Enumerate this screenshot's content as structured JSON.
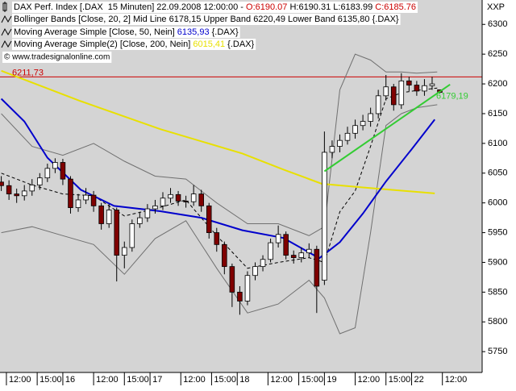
{
  "chart_data": {
    "type": "candlestick",
    "corner_label": "XXP",
    "source": "© www.tradesignalonline.com",
    "header": [
      [
        {
          "text": "DAX Perf. Index [.DAX  15 Minuten] 22.09.2008 12:00:00 - ",
          "color": "#000000"
        },
        {
          "text": "O:6190.07",
          "color": "#cc0000"
        },
        {
          "text": " H:6190.31 L:6183.99 ",
          "color": "#000000"
        },
        {
          "text": "C:6185.76",
          "color": "#cc0000"
        }
      ],
      [
        {
          "text": "Bollinger Bands [Close, 20, 2] Mid Line 6178,15 Upper Band 6220,49 Lower Band 6135,80 {.DAX}",
          "color": "#000000"
        }
      ],
      [
        {
          "text": "Moving Average Simple [Close, 50, Nein] ",
          "color": "#000000"
        },
        {
          "text": "6135,93",
          "color": "#0000cc"
        },
        {
          "text": " {.DAX}",
          "color": "#000000"
        }
      ],
      [
        {
          "text": "Moving Average Simple(2) [Close, 200, Nein] ",
          "color": "#000000"
        },
        {
          "text": "6015,41",
          "color": "#e8e000"
        },
        {
          "text": " {.DAX}",
          "color": "#000000"
        }
      ]
    ],
    "up_color": "#ffffff",
    "down_color": "#800000",
    "x": [
      -24,
      -21,
      -18,
      -15,
      -12,
      -9,
      -6,
      -3,
      0,
      3,
      6,
      9,
      12,
      15,
      18,
      21,
      24,
      27,
      30,
      33,
      36,
      39,
      42,
      45,
      48,
      51,
      54,
      57,
      60,
      63,
      66,
      69,
      72,
      75,
      78,
      81,
      84,
      87,
      90,
      93,
      96,
      99,
      102,
      105,
      108,
      111,
      114,
      117,
      120,
      123,
      126,
      129,
      132,
      135,
      138,
      141,
      144,
      147
    ],
    "open": [
      6035,
      6029,
      6015,
      6012,
      6020,
      6030,
      6042,
      6058,
      6068,
      6040,
      5992,
      6005,
      6013,
      5995,
      5965,
      5988,
      5912,
      5925,
      5965,
      5975,
      5990,
      5995,
      6008,
      6014,
      6003,
      6002,
      6015,
      5995,
      5950,
      5930,
      5893,
      5850,
      5835,
      5878,
      5893,
      5905,
      5933,
      5947,
      5912,
      5908,
      5916,
      5922,
      5870,
      6085,
      6095,
      6105,
      6117,
      6130,
      6137,
      6150,
      6180,
      6195,
      6165,
      6205,
      6198,
      6188,
      6197,
      6190.07
    ],
    "high": [
      6045,
      6038,
      6024,
      6030,
      6040,
      6050,
      6066,
      6075,
      6074,
      6045,
      6015,
      6025,
      6020,
      6000,
      5998,
      5992,
      5935,
      5972,
      5985,
      5998,
      6005,
      6018,
      6025,
      6020,
      6012,
      6030,
      6022,
      6000,
      5958,
      5935,
      5898,
      5860,
      5885,
      5900,
      5912,
      5940,
      5962,
      5952,
      5920,
      5925,
      5932,
      5928,
      6120,
      6105,
      6115,
      6128,
      6140,
      6148,
      6160,
      6190,
      6215,
      6200,
      6218,
      6212,
      6205,
      6208,
      6212,
      6190.31
    ],
    "low": [
      6020,
      6005,
      6000,
      6004,
      6012,
      6022,
      6035,
      6050,
      6030,
      5982,
      5985,
      5998,
      5985,
      5955,
      5958,
      5868,
      5890,
      5918,
      5958,
      5968,
      5982,
      5988,
      6000,
      5995,
      5992,
      5995,
      5985,
      5940,
      5918,
      5880,
      5825,
      5812,
      5828,
      5870,
      5885,
      5900,
      5925,
      5905,
      5898,
      5900,
      5908,
      5815,
      5862,
      6075,
      6085,
      6098,
      6108,
      6122,
      6128,
      6142,
      6172,
      6155,
      6158,
      6188,
      6180,
      6180,
      6190,
      6183.99
    ],
    "close": [
      6029,
      6015,
      6012,
      6020,
      6030,
      6042,
      6058,
      6068,
      6040,
      5992,
      6005,
      6013,
      5995,
      5965,
      5988,
      5912,
      5925,
      5965,
      5975,
      5990,
      5995,
      6008,
      6014,
      6003,
      6002,
      6015,
      5995,
      5950,
      5930,
      5893,
      5850,
      5835,
      5878,
      5893,
      5905,
      5933,
      5947,
      5912,
      5908,
      5916,
      5922,
      5860,
      6085,
      6095,
      6105,
      6117,
      6130,
      6137,
      6150,
      6180,
      6195,
      6165,
      6205,
      6198,
      6188,
      6197,
      6200,
      6185.76
    ],
    "lines": [
      {
        "color": "#707070",
        "width": 1,
        "dash": false,
        "x": [
          -24,
          -12,
          0,
          12,
          24,
          36,
          48,
          60,
          72,
          84,
          96,
          102,
          108,
          114,
          120,
          126,
          132,
          138,
          146
        ],
        "values": [
          6150,
          6095,
          6080,
          6100,
          6070,
          6045,
          6040,
          6000,
          5965,
          5965,
          5945,
          5960,
          6190,
          6250,
          6240,
          6220,
          6220,
          6218,
          6220
        ]
      },
      {
        "color": "#707070",
        "width": 1,
        "dash": false,
        "x": [
          -24,
          -12,
          0,
          12,
          24,
          36,
          48,
          60,
          72,
          84,
          96,
          102,
          108,
          114,
          120,
          126,
          132,
          138,
          146
        ],
        "values": [
          5950,
          5960,
          5945,
          5930,
          5880,
          5940,
          5970,
          5890,
          5815,
          5830,
          5870,
          5840,
          5780,
          5790,
          5950,
          6130,
          6150,
          6160,
          6165
        ]
      },
      {
        "color": "#000000",
        "width": 1,
        "dash": true,
        "x": [
          -24,
          -12,
          0,
          12,
          24,
          36,
          48,
          60,
          72,
          84,
          96,
          102,
          108,
          114,
          120,
          126,
          132,
          138,
          146
        ],
        "values": [
          6050,
          6030,
          6015,
          6012,
          5978,
          5990,
          6005,
          5945,
          5890,
          5900,
          5908,
          5900,
          5985,
          6020,
          6095,
          6175,
          6185,
          6189,
          6193
        ]
      },
      {
        "color": "#e8e000",
        "width": 2,
        "dash": false,
        "x": [
          -24,
          7,
          38,
          70,
          86,
          101,
          117,
          145
        ],
        "values": [
          6222,
          6171,
          6124,
          6083,
          6056,
          6032,
          6026,
          6016
        ]
      },
      {
        "color": "#0000cc",
        "width": 2,
        "dash": false,
        "x": [
          -24,
          -15,
          -6,
          7,
          20,
          38,
          54,
          70,
          86,
          100,
          108,
          117,
          126,
          136,
          145
        ],
        "values": [
          6175,
          6137,
          6076,
          6022,
          5995,
          5986,
          5975,
          5954,
          5941,
          5907,
          5934,
          5982,
          6036,
          6090,
          6140
        ]
      }
    ],
    "hline": {
      "value": 6211.73,
      "label": "6211,73",
      "color": "#cc0000"
    },
    "trend": {
      "color": "#33cc33",
      "x": [
        102,
        151
      ],
      "values": [
        6053,
        6199
      ],
      "price": {
        "value": 6179.19,
        "label": "6179,19"
      }
    },
    "xlim": [
      -24.5,
      163.5
    ],
    "xticks": [
      {
        "value": -22,
        "label": "12:00"
      },
      {
        "value": -10,
        "label": "15:00"
      },
      {
        "value": 0,
        "label": "16"
      },
      {
        "value": 12,
        "label": "12:00"
      },
      {
        "value": 24,
        "label": "15:00"
      },
      {
        "value": 34,
        "label": "17"
      },
      {
        "value": 46,
        "label": "12:00"
      },
      {
        "value": 58,
        "label": "15:00"
      },
      {
        "value": 68,
        "label": "18"
      },
      {
        "value": 80,
        "label": "12:00"
      },
      {
        "value": 92,
        "label": "15:00"
      },
      {
        "value": 102,
        "label": "19"
      },
      {
        "value": 114,
        "label": "12:00"
      },
      {
        "value": 126,
        "label": "15:00"
      },
      {
        "value": 136,
        "label": "22"
      },
      {
        "value": 148,
        "label": "12:00"
      }
    ],
    "ylim": [
      5715,
      6341
    ],
    "yticks": [
      5750,
      5800,
      5850,
      5900,
      5950,
      6000,
      6050,
      6100,
      6150,
      6200,
      6250,
      6300
    ]
  }
}
